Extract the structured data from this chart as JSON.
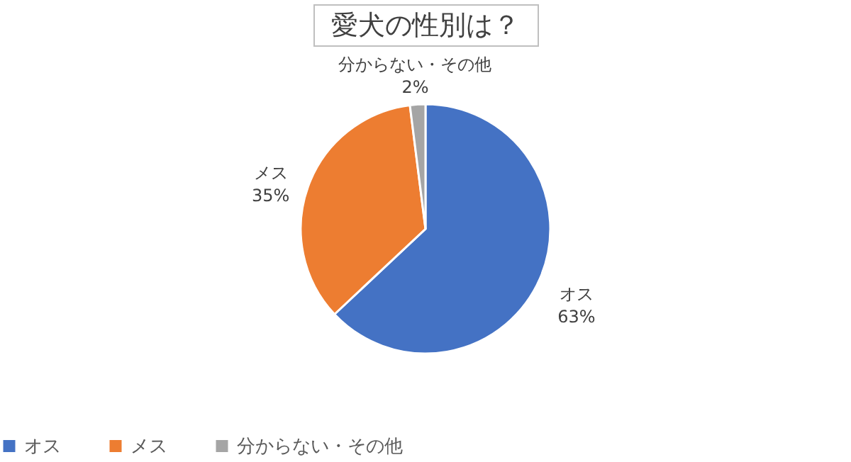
{
  "chart_data": {
    "type": "pie",
    "title": "愛犬の性別は？",
    "categories": [
      "オス",
      "メス",
      "分からない・その他"
    ],
    "values": [
      63,
      35,
      2
    ],
    "colors": [
      "#4472c4",
      "#ed7d31",
      "#a5a5a5"
    ],
    "value_labels": [
      "63%",
      "35%",
      "2%"
    ],
    "legend": "bottom"
  }
}
